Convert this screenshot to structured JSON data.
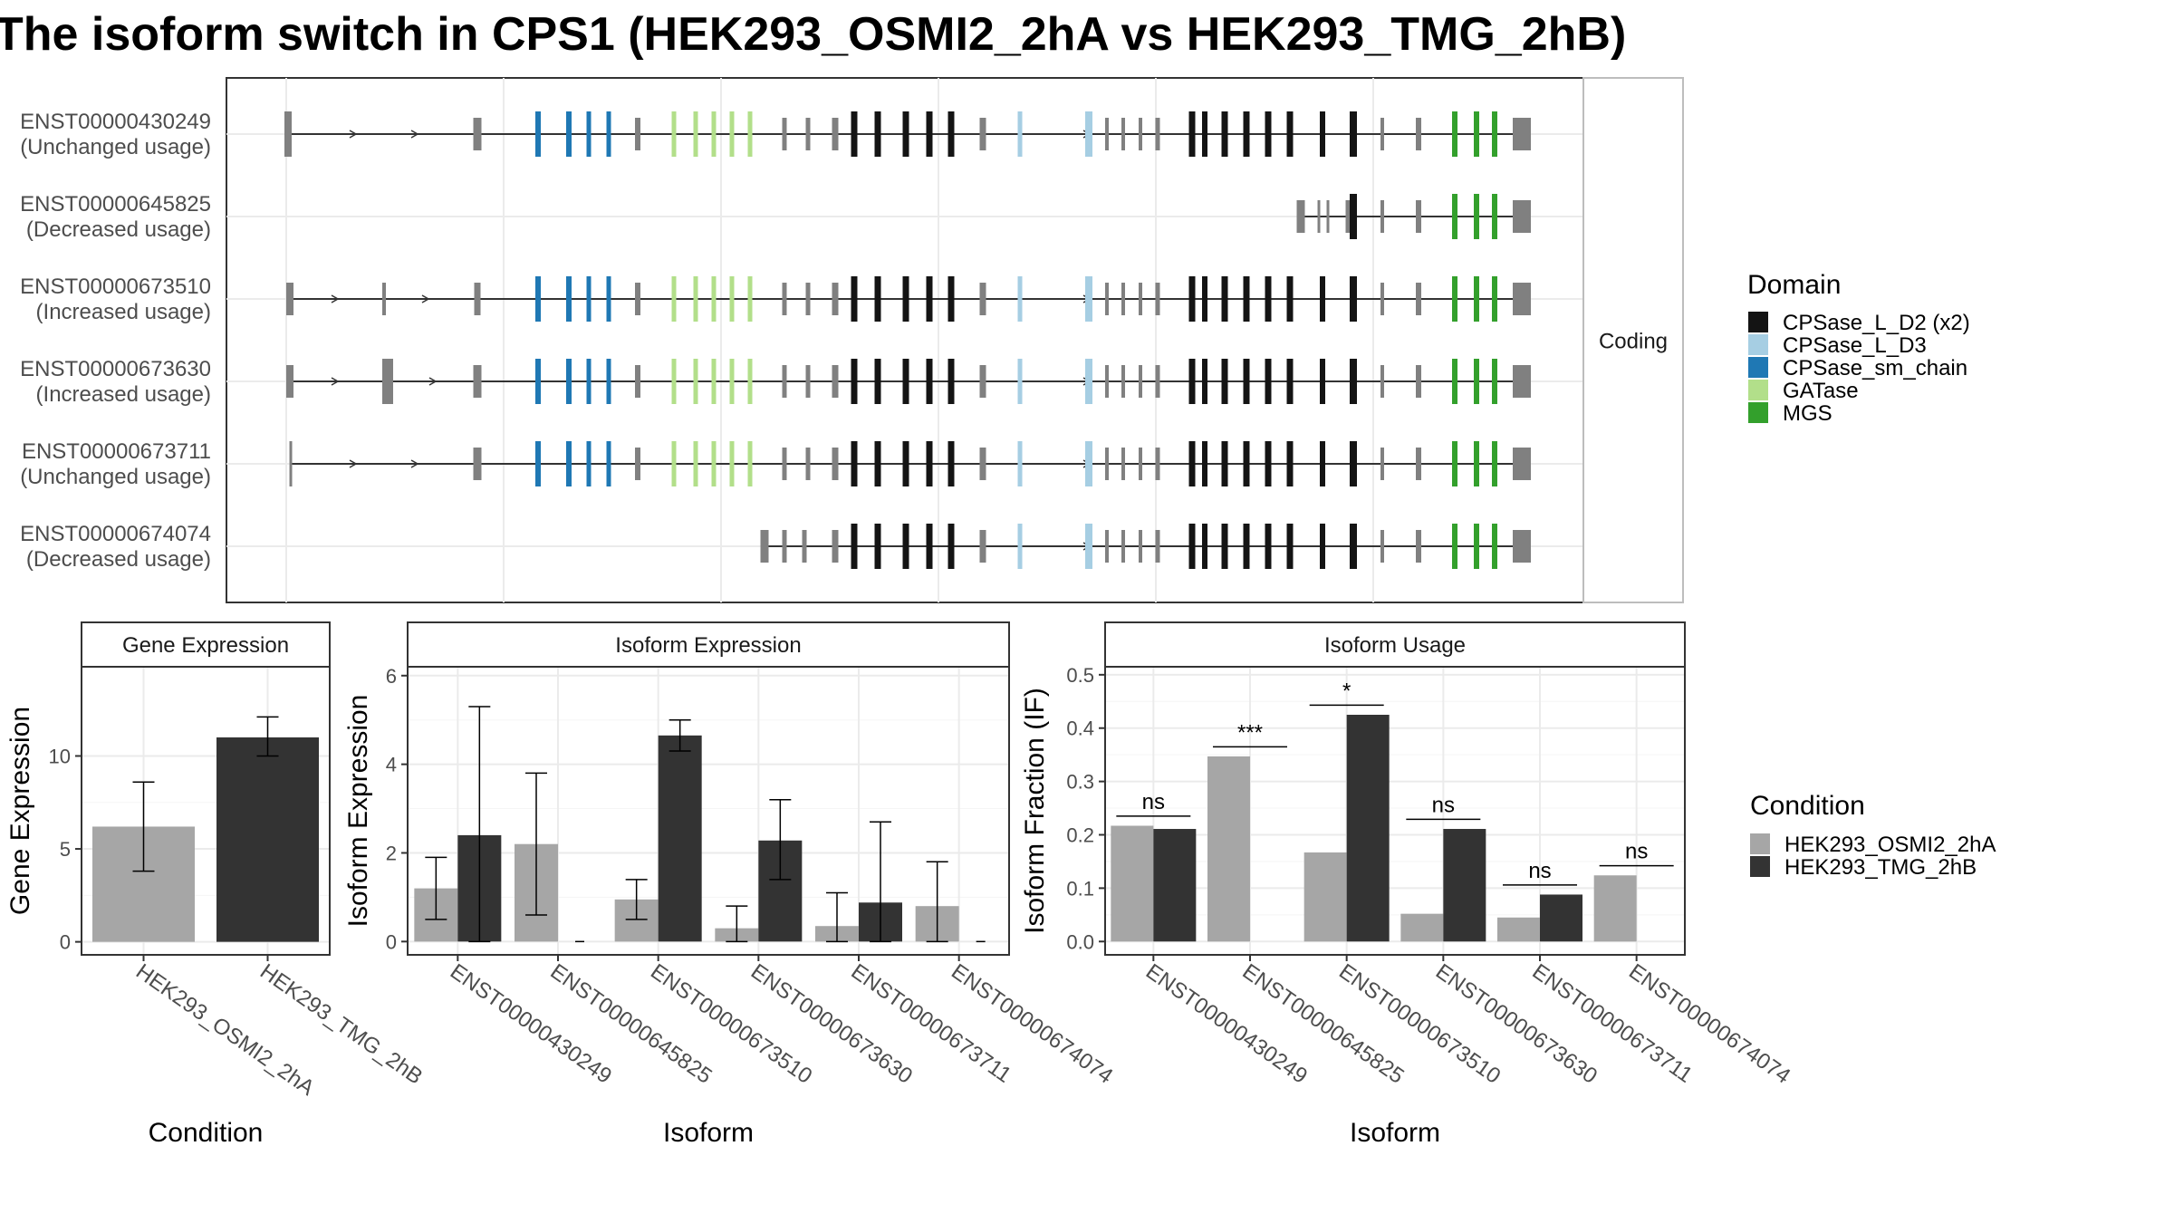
{
  "title": "The isoform switch in CPS1 (HEK293_OSMI2_2hA vs HEK293_TMG_2hB)",
  "colors": {
    "cond_a": "#a6a6a6",
    "cond_b": "#333333",
    "CPSase_L_D2": "#141414",
    "CPSase_L_D3": "#a6cee3",
    "CPSase_sm_chain": "#1f78b4",
    "GATase": "#b2df8a",
    "MGS": "#33a02c",
    "utr": "#808080",
    "panel_border": "#333333",
    "grid": "#ebebeb",
    "strip_bg": "#ffffff"
  },
  "chart_data": [
    {
      "type": "gene-structure",
      "facet_label": "Coding",
      "transcripts": [
        {
          "id": "ENST00000430249",
          "usage": "(Unchanged usage)"
        },
        {
          "id": "ENST00000645825",
          "usage": "(Decreased usage)"
        },
        {
          "id": "ENST00000673510",
          "usage": "(Increased usage)"
        },
        {
          "id": "ENST00000673630",
          "usage": "(Increased usage)"
        },
        {
          "id": "ENST00000673711",
          "usage": "(Unchanged usage)"
        },
        {
          "id": "ENST00000674074",
          "usage": "(Decreased usage)"
        }
      ],
      "legend_title": "Domain",
      "legend": [
        {
          "label": "CPSase_L_D2 (x2)",
          "color_key": "CPSase_L_D2"
        },
        {
          "label": "CPSase_L_D3",
          "color_key": "CPSase_L_D3"
        },
        {
          "label": "CPSase_sm_chain",
          "color_key": "CPSase_sm_chain"
        },
        {
          "label": "GATase",
          "color_key": "GATase"
        },
        {
          "label": "MGS",
          "color_key": "MGS"
        }
      ]
    },
    {
      "type": "bar",
      "strip": "Gene Expression",
      "xlabel": "Condition",
      "ylabel": "Gene Expression",
      "ylim": [
        -0.7,
        14.8
      ],
      "yticks": [
        0,
        5,
        10
      ],
      "categories": [
        "HEK293_OSMI2_2hA",
        "HEK293_TMG_2hB"
      ],
      "values": [
        6.2,
        11.0
      ],
      "err_low": [
        3.8,
        10.0
      ],
      "err_high": [
        8.6,
        12.1
      ]
    },
    {
      "type": "bar",
      "strip": "Isoform Expression",
      "xlabel": "Isoform",
      "ylabel": "Isoform Expression",
      "ylim": [
        -0.3,
        6.2
      ],
      "yticks": [
        0,
        2,
        4,
        6
      ],
      "categories": [
        "ENST00000430249",
        "ENST00000645825",
        "ENST00000673510",
        "ENST00000673630",
        "ENST00000673711",
        "ENST00000674074"
      ],
      "series": [
        {
          "condition": "HEK293_OSMI2_2hA",
          "values": [
            1.2,
            2.2,
            0.95,
            0.3,
            0.35,
            0.8
          ],
          "err_low": [
            0.5,
            0.6,
            0.5,
            0.0,
            0.0,
            0.0
          ],
          "err_high": [
            1.9,
            3.8,
            1.4,
            0.8,
            1.1,
            1.8
          ]
        },
        {
          "condition": "HEK293_TMG_2hB",
          "values": [
            2.4,
            0.0,
            4.65,
            2.28,
            0.88,
            0.0
          ],
          "err_low": [
            0.0,
            0.0,
            4.3,
            1.4,
            0.0,
            0.0
          ],
          "err_high": [
            5.3,
            0.0,
            5.0,
            3.2,
            2.7,
            0.0
          ]
        }
      ]
    },
    {
      "type": "bar",
      "strip": "Isoform Usage",
      "xlabel": "Isoform",
      "ylabel": "Isoform Fraction (IF)",
      "ylim": [
        -0.025,
        0.515
      ],
      "yticks": [
        0.0,
        0.1,
        0.2,
        0.3,
        0.4,
        0.5
      ],
      "ytick_labels": [
        "0.0",
        "0.1",
        "0.2",
        "0.3",
        "0.4",
        "0.5"
      ],
      "categories": [
        "ENST00000430249",
        "ENST00000645825",
        "ENST00000673510",
        "ENST00000673630",
        "ENST00000673711",
        "ENST00000674074"
      ],
      "series": [
        {
          "condition": "HEK293_OSMI2_2hA",
          "values": [
            0.217,
            0.347,
            0.167,
            0.052,
            0.045,
            0.124
          ]
        },
        {
          "condition": "HEK293_TMG_2hB",
          "values": [
            0.211,
            0.0,
            0.425,
            0.211,
            0.088,
            0.0
          ]
        }
      ],
      "significance": [
        "ns",
        "***",
        "*",
        "ns",
        "ns",
        "ns"
      ]
    }
  ],
  "condition_legend": {
    "title": "Condition",
    "items": [
      {
        "label": "HEK293_OSMI2_2hA",
        "color_key": "cond_a"
      },
      {
        "label": "HEK293_TMG_2hB",
        "color_key": "cond_b"
      }
    ]
  }
}
